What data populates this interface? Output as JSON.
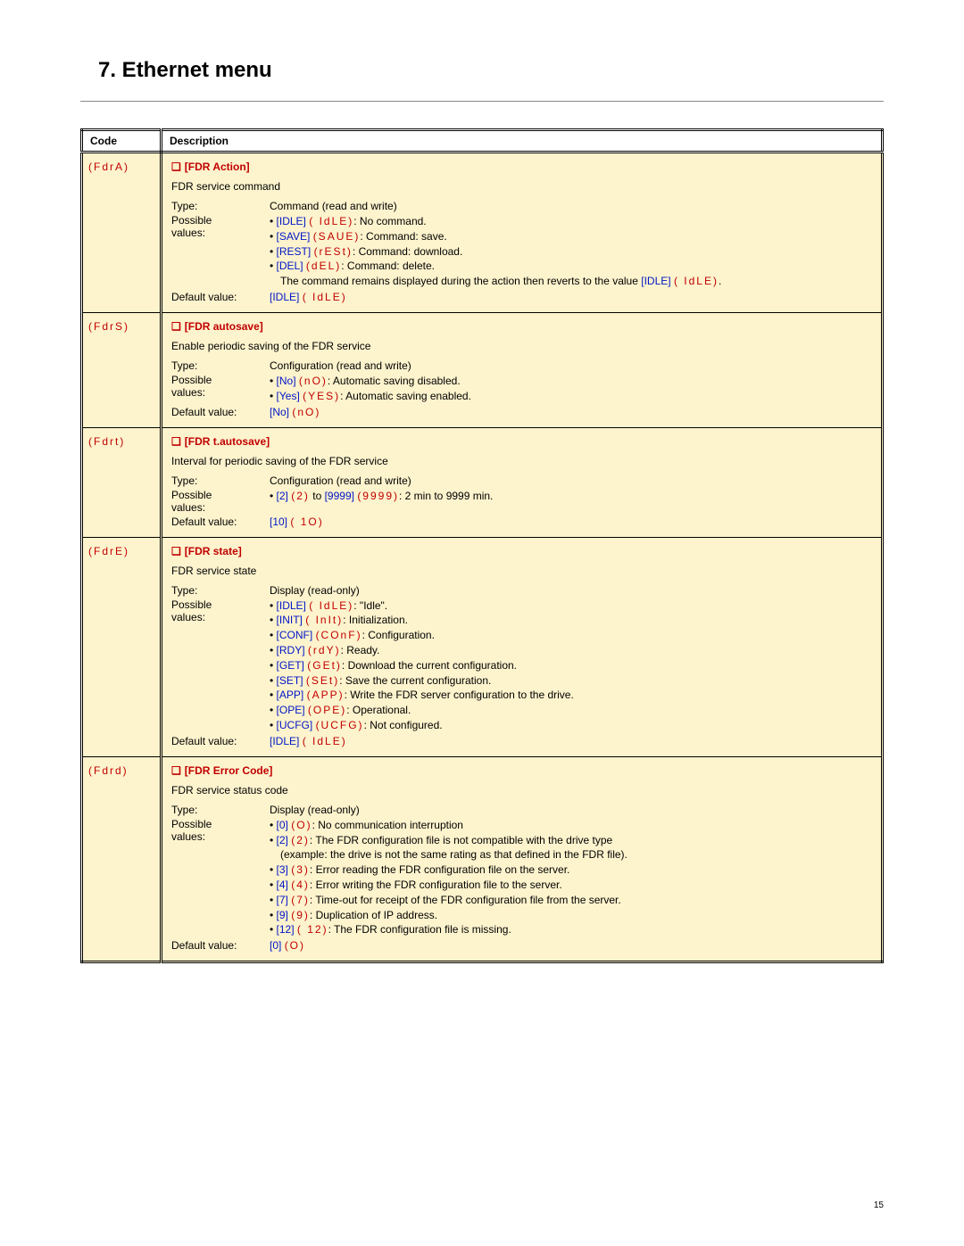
{
  "title": "7. Ethernet menu",
  "page_number": "15",
  "headers": {
    "code": "Code",
    "description": "Description"
  },
  "rows": [
    {
      "code": "(FdrA)",
      "name": "[FDR Action]",
      "subtitle": "FDR service command",
      "type": "Command (read and write)",
      "values": [
        {
          "key": "[IDLE]",
          "disp": "( IdLE)",
          "text": ": No command."
        },
        {
          "key": "[SAVE]",
          "disp": "(SAUE)",
          "text": ": Command: save."
        },
        {
          "key": "[REST]",
          "disp": "(rESt)",
          "text": ": Command: download."
        },
        {
          "key": "[DEL]",
          "disp": "(dEL)",
          "text": ": Command: delete."
        }
      ],
      "note_pre": "The command remains displayed during the action then reverts to the value ",
      "note_key": "[IDLE]",
      "note_disp": "( IdLE)",
      "note_post": ".",
      "default_key": "[IDLE]",
      "default_disp": "( IdLE)"
    },
    {
      "code": "(FdrS)",
      "name": "[FDR autosave]",
      "subtitle": "Enable periodic saving of the FDR service",
      "type": "Configuration (read and write)",
      "values": [
        {
          "key": "[No]",
          "disp": "(nO)",
          "text": ": Automatic saving disabled."
        },
        {
          "key": "[Yes]",
          "disp": "(YES)",
          "text": ": Automatic saving enabled."
        }
      ],
      "default_key": "[No]",
      "default_disp": "(nO)"
    },
    {
      "code": "(Fdrt)",
      "name": "[FDR t.autosave]",
      "subtitle": "Interval for periodic saving of the FDR service",
      "type": "Configuration (read and write)",
      "range": {
        "k1": "[2]",
        "d1": "(2)",
        "to": " to ",
        "k2": "[9999]",
        "d2": "(9999)",
        "text": ": 2 min to 9999 min."
      },
      "default_key": "[10]",
      "default_disp": "( 1O)"
    },
    {
      "code": "(FdrE)",
      "name": "[FDR state]",
      "subtitle": "FDR service state",
      "type": "Display (read-only)",
      "values": [
        {
          "key": "[IDLE]",
          "disp": "( IdLE)",
          "text": ": \"Idle\"."
        },
        {
          "key": "[INIT]",
          "disp": "( InIt)",
          "text": ": Initialization."
        },
        {
          "key": "[CONF]",
          "disp": "(COnF)",
          "text": ": Configuration."
        },
        {
          "key": "[RDY]",
          "disp": "(rdY)",
          "text": ": Ready."
        },
        {
          "key": "[GET]",
          "disp": "(GEt)",
          "text": ": Download the current configuration."
        },
        {
          "key": "[SET]",
          "disp": "(SEt)",
          "text": ": Save the current configuration."
        },
        {
          "key": "[APP]",
          "disp": "(APP)",
          "text": ": Write the FDR server configuration to the drive."
        },
        {
          "key": "[OPE]",
          "disp": "(OPE)",
          "text": ": Operational."
        },
        {
          "key": "[UCFG]",
          "disp": "(UCFG)",
          "text": ": Not configured."
        }
      ],
      "default_key": "[IDLE]",
      "default_disp": "( IdLE)"
    },
    {
      "code": "(Fdrd)",
      "name": "[FDR Error Code]",
      "subtitle": "FDR service status code",
      "type": "Display (read-only)",
      "values": [
        {
          "key": "[0]",
          "disp": "(O)",
          "text": ": No communication interruption"
        },
        {
          "key": "[2]",
          "disp": "(2)",
          "text": ": The FDR configuration file is not compatible with the drive type",
          "sub": "(example: the drive is not the same rating as that defined in the FDR file)."
        },
        {
          "key": "[3]",
          "disp": "(3)",
          "text": ": Error reading the FDR configuration file on the server."
        },
        {
          "key": "[4]",
          "disp": "(4)",
          "text": ": Error writing the FDR configuration file to the server."
        },
        {
          "key": "[7]",
          "disp": "(7)",
          "text": ": Time-out for receipt of the FDR configuration file from the server."
        },
        {
          "key": "[9]",
          "disp": "(9)",
          "text": ": Duplication of IP address."
        },
        {
          "key": "[12]",
          "disp": "( 12)",
          "text": ": The FDR configuration file is missing."
        }
      ],
      "default_key": "[0]",
      "default_disp": "(O)"
    }
  ],
  "labels": {
    "type": "Type:",
    "possible": "Possible",
    "values": "values:",
    "default": "Default value:"
  }
}
